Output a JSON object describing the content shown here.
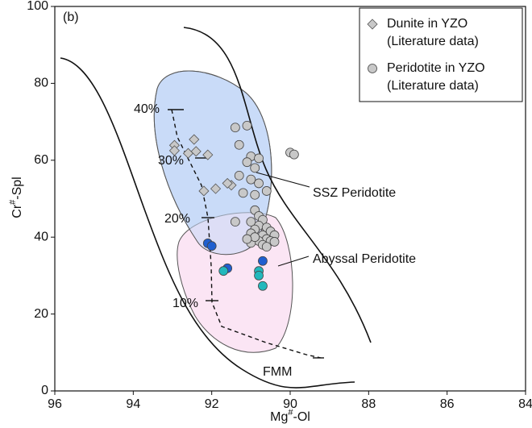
{
  "chart_data": {
    "type": "scatter",
    "panel_label": "(b)",
    "x_label": "Mg#-Ol",
    "y_label": "Cr#-Spl",
    "xlim": [
      96,
      84
    ],
    "ylim": [
      0,
      100
    ],
    "xticks": [
      96,
      94,
      92,
      90,
      88,
      86,
      84
    ],
    "yticks": [
      0,
      20,
      40,
      60,
      80,
      100
    ],
    "annotations": [
      "SSZ Peridotite",
      "Abyssal Peridotite",
      "FMM",
      "40%",
      "30%",
      "20%",
      "10%"
    ],
    "series": [
      {
        "name": "Dunite in YZO (Literature data)",
        "marker": "diamond",
        "color": "#c8c8c8",
        "x": [
          92.95,
          92.95,
          92.6,
          92.45,
          92.4,
          92.1,
          91.5,
          92.2,
          91.9,
          91.6
        ],
        "values": [
          63.9,
          62.5,
          61.8,
          65.4,
          62.3,
          61.4,
          53.5,
          52,
          52.6,
          54
        ]
      },
      {
        "name": "Peridotite in YZO (Literature data)",
        "marker": "circle",
        "color": "#c8c8c8",
        "x": [
          91.1,
          91.4,
          91.3,
          91.0,
          90.8,
          91.1,
          90.9,
          91.3,
          91.0,
          90.8,
          90.6,
          90.9,
          91.2,
          91.4,
          90.9,
          90.8,
          90.7,
          91.0,
          90.8,
          90.6,
          90.5,
          90.4,
          90.9,
          91.0,
          90.7,
          90.6,
          90.8,
          91.0,
          90.5,
          90.4,
          90.7,
          90.9,
          91.1,
          90.6,
          90.0,
          89.9
        ],
        "values": [
          69,
          68.5,
          64,
          61,
          60.5,
          59.5,
          58,
          56,
          55,
          54,
          52,
          51,
          51.5,
          44,
          47,
          45.5,
          44.5,
          44,
          43,
          42.5,
          41.5,
          40.5,
          42,
          41,
          40.5,
          39.5,
          39,
          38.5,
          39,
          38.8,
          38,
          40,
          39.5,
          37.5,
          62,
          61.5
        ]
      },
      {
        "marker": "circle",
        "color": "#1f5fd0",
        "x": [
          92.1,
          92.0,
          91.6,
          90.7
        ],
        "values": [
          38.4,
          37.7,
          31.9,
          33.8
        ]
      },
      {
        "marker": "circle",
        "color": "#22b8bc",
        "x": [
          91.7,
          90.8,
          90.8,
          90.7
        ],
        "values": [
          31.2,
          31.2,
          30,
          27.3
        ]
      }
    ]
  }
}
